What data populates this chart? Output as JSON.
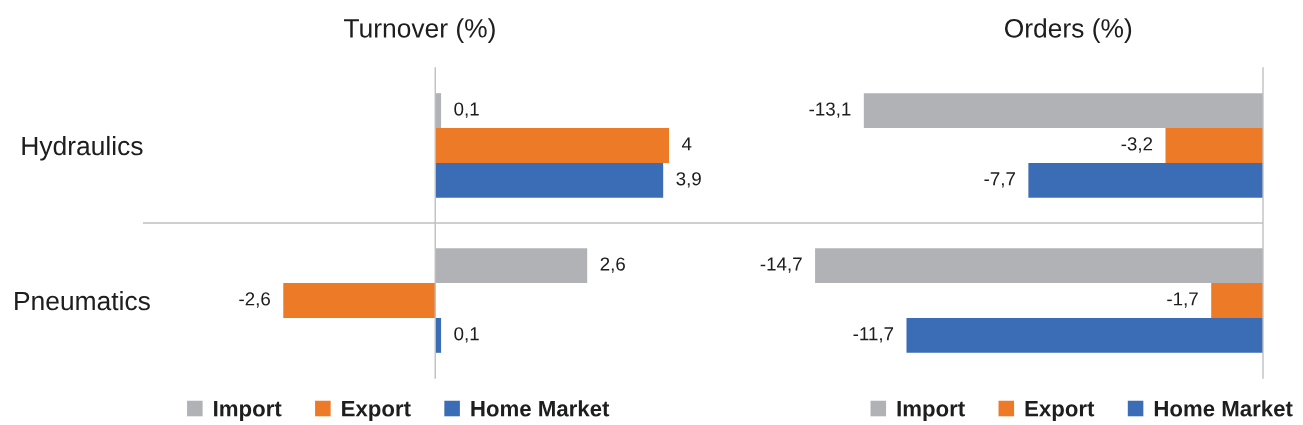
{
  "chart_data": [
    {
      "type": "bar",
      "orientation": "horizontal",
      "title": "Turnover (%)",
      "categories": [
        "Hydraulics",
        "Pneumatics"
      ],
      "series": [
        {
          "name": "Import",
          "color": "#b1b2b6",
          "values": [
            0.1,
            2.6
          ],
          "value_labels": [
            "0,1",
            "2,6"
          ]
        },
        {
          "name": "Export",
          "color": "#ed7a26",
          "values": [
            4,
            -2.6
          ],
          "value_labels": [
            "4",
            "-2,6"
          ]
        },
        {
          "name": "Home Market",
          "color": "#3b6cb6",
          "values": [
            3.9,
            0.1
          ],
          "value_labels": [
            "3,9",
            "0,1"
          ]
        }
      ],
      "xlim": [
        -5,
        5.3
      ],
      "grid": "y",
      "legend": "bottom",
      "tick_labels": "y"
    },
    {
      "type": "bar",
      "orientation": "horizontal",
      "title": "Orders (%)",
      "categories": [
        null,
        null
      ],
      "series": [
        {
          "name": "Import",
          "color": "#b1b2b6",
          "values": [
            -13.1,
            -14.7
          ],
          "value_labels": [
            "-13,1",
            "-14,7"
          ]
        },
        {
          "name": "Export",
          "color": "#ed7a26",
          "values": [
            -3.2,
            -1.7
          ],
          "value_labels": [
            "-3,2",
            "-1,7"
          ]
        },
        {
          "name": "Home Market",
          "color": "#3b6cb6",
          "values": [
            -7.7,
            -11.7
          ],
          "value_labels": [
            "-7,7",
            "-11,7"
          ]
        }
      ],
      "xlim": [
        -17,
        0
      ],
      "grid": "y",
      "legend": "bottom"
    }
  ]
}
